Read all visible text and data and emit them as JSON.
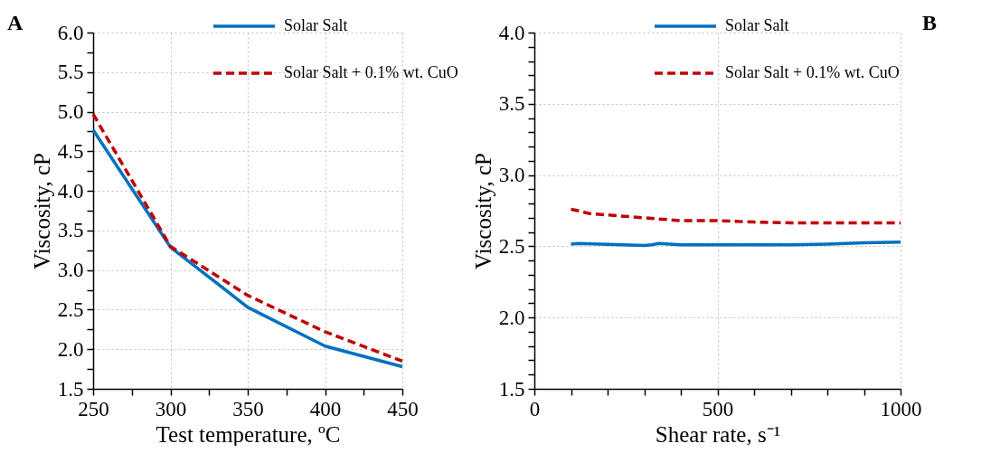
{
  "chart_data": [
    {
      "type": "line",
      "xlabel": "Test temperature, ºC",
      "ylabel": "Viscosity,  cP",
      "annotations": [
        "A"
      ],
      "x": [
        250,
        300,
        350,
        400,
        450
      ],
      "series": [
        {
          "name": "Solar Salt",
          "color": "#0070c0",
          "line_style": "solid",
          "values": [
            4.77,
            3.29,
            2.53,
            2.04,
            1.78
          ]
        },
        {
          "name": "Solar Salt + 0.1% wt. CuO",
          "color": "#c00000",
          "line_style": "dashed",
          "values": [
            4.97,
            3.3,
            2.68,
            2.22,
            1.85
          ]
        }
      ],
      "xlim": [
        250,
        450
      ],
      "xticks": [
        250,
        {
          "value": 275,
          "label": null
        },
        300,
        {
          "value": 325,
          "label": null
        },
        350,
        {
          "value": 375,
          "label": null
        },
        400,
        {
          "value": 425,
          "label": null
        },
        450
      ],
      "ylim": [
        1.5,
        6
      ],
      "yticks": [
        {
          "value": 1.5,
          "label": "1.5"
        },
        {
          "value": 1.75,
          "label": null
        },
        {
          "value": 2,
          "label": "2.0"
        },
        {
          "value": 2.25,
          "label": null
        },
        {
          "value": 2.5,
          "label": "2.5"
        },
        {
          "value": 2.75,
          "label": null
        },
        {
          "value": 3,
          "label": "3.0"
        },
        {
          "value": 3.25,
          "label": null
        },
        {
          "value": 3.5,
          "label": "3.5"
        },
        {
          "value": 3.75,
          "label": null
        },
        {
          "value": 4,
          "label": "4.0"
        },
        {
          "value": 4.25,
          "label": null
        },
        {
          "value": 4.5,
          "label": "4.5"
        },
        {
          "value": 4.75,
          "label": null
        },
        {
          "value": 5,
          "label": "5.0"
        },
        {
          "value": 5.25,
          "label": null
        },
        {
          "value": 5.5,
          "label": "5.5"
        },
        {
          "value": 5.75,
          "label": null
        },
        {
          "value": 6,
          "label": "6.0"
        }
      ],
      "grid": true,
      "legend": "top"
    },
    {
      "type": "line",
      "xlabel": "Shear rate, s⁻¹",
      "ylabel": "Viscosity,  cP",
      "annotations": [
        "B"
      ],
      "series": [
        {
          "name": "Solar Salt",
          "color": "#0070c0",
          "line_style": "solid",
          "x": [
            100,
            120,
            200,
            300,
            320,
            340,
            400,
            500,
            700,
            800,
            900,
            1000
          ],
          "values": [
            2.515,
            2.52,
            2.513,
            2.505,
            2.51,
            2.52,
            2.51,
            2.51,
            2.51,
            2.515,
            2.525,
            2.53
          ]
        },
        {
          "name": "Solar Salt + 0.1% wt. CuO",
          "color": "#c00000",
          "line_style": "dashed",
          "x": [
            100,
            120,
            150,
            200,
            300,
            400,
            500,
            600,
            700,
            1000
          ],
          "values": [
            2.76,
            2.75,
            2.73,
            2.72,
            2.7,
            2.68,
            2.68,
            2.67,
            2.665,
            2.665
          ]
        }
      ],
      "xlim": [
        0,
        1000
      ],
      "xticks": [
        0,
        {
          "value": 100,
          "label": null
        },
        {
          "value": 200,
          "label": null
        },
        {
          "value": 300,
          "label": null
        },
        {
          "value": 400,
          "label": null
        },
        500,
        {
          "value": 600,
          "label": null
        },
        {
          "value": 700,
          "label": null
        },
        {
          "value": 800,
          "label": null
        },
        {
          "value": 900,
          "label": null
        },
        1000
      ],
      "ylim": [
        1.5,
        4
      ],
      "yticks": [
        {
          "value": 1.5,
          "label": "1.5"
        },
        {
          "value": 1.6,
          "label": null
        },
        {
          "value": 1.7,
          "label": null
        },
        {
          "value": 1.8,
          "label": null
        },
        {
          "value": 1.9,
          "label": null
        },
        {
          "value": 2,
          "label": "2.0"
        },
        {
          "value": 2.1,
          "label": null
        },
        {
          "value": 2.2,
          "label": null
        },
        {
          "value": 2.3,
          "label": null
        },
        {
          "value": 2.4,
          "label": null
        },
        {
          "value": 2.5,
          "label": "2.5"
        },
        {
          "value": 2.6,
          "label": null
        },
        {
          "value": 2.7,
          "label": null
        },
        {
          "value": 2.8,
          "label": null
        },
        {
          "value": 2.9,
          "label": null
        },
        {
          "value": 3,
          "label": "3.0"
        },
        {
          "value": 3.1,
          "label": null
        },
        {
          "value": 3.2,
          "label": null
        },
        {
          "value": 3.3,
          "label": null
        },
        {
          "value": 3.4,
          "label": null
        },
        {
          "value": 3.5,
          "label": "3.5"
        },
        {
          "value": 3.6,
          "label": null
        },
        {
          "value": 3.7,
          "label": null
        },
        {
          "value": 3.8,
          "label": null
        },
        {
          "value": 3.9,
          "label": null
        },
        {
          "value": 4,
          "label": "4.0"
        }
      ],
      "grid": true,
      "legend": "top"
    }
  ]
}
